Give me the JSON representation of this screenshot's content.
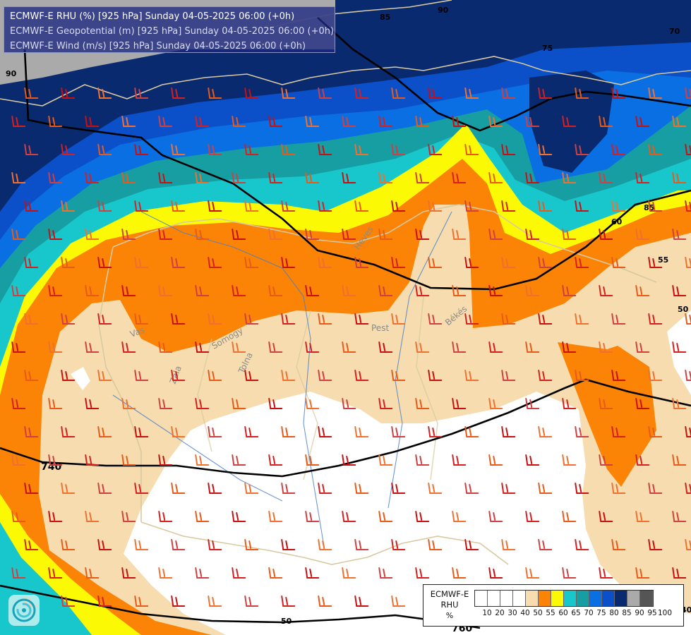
{
  "header": {
    "line1": "ECMWF-E RHU (%) [925 hPa] Sunday 04-05-2025 06:00 (+0h)",
    "line2": "ECMWF-E Geopotential (m) [925 hPa] Sunday 04-05-2025 06:00 (+0h)",
    "line3": "ECMWF-E Wind (m/s) [925 hPa] Sunday 04-05-2025 06:00 (+0h)"
  },
  "legend": {
    "name_line1": "ECMWF-E",
    "name_line2": "RHU",
    "units": "%",
    "ticks": [
      "10",
      "20",
      "30",
      "40",
      "50",
      "55",
      "60",
      "65",
      "70",
      "75",
      "80",
      "85",
      "90",
      "95",
      "100"
    ],
    "colors": [
      "#ffffff",
      "#ffffff",
      "#ffffff",
      "#ffffff",
      "#f6dcae",
      "#fb8305",
      "#fbfa04",
      "#18c7cc",
      "#179ea3",
      "#0a6fe2",
      "#0b4fc9",
      "#0a2a70",
      "#aaaaaa",
      "#555555"
    ]
  },
  "contour_labels": {
    "geopotential": [
      "740",
      "760",
      "760",
      "760"
    ],
    "rhu": [
      "85",
      "90",
      "75",
      "70",
      "85",
      "60",
      "55",
      "50",
      "50",
      "40",
      "90"
    ]
  },
  "place_labels": [
    "Heves",
    "Pest",
    "Békés",
    "Vas",
    "Zala",
    "Somogy",
    "Tolna"
  ],
  "colors": {
    "rhu_50_55": "#f6dcae",
    "rhu_55_60": "#fb8305",
    "rhu_60_65": "#fbfa04",
    "rhu_65_70": "#18c7cc",
    "rhu_70_75": "#179ea3",
    "rhu_75_80": "#0a6fe2",
    "rhu_80_85": "#0b4fc9",
    "rhu_85_90": "#0a2a70",
    "rhu_90_95": "#aaaaaa",
    "geopotential_line": "#000000",
    "border_line": "#d8c9a0",
    "river": "#4a7ec8"
  },
  "icons": {
    "logo": "swirl-logo-icon",
    "wind": "wind-barb-icon"
  }
}
